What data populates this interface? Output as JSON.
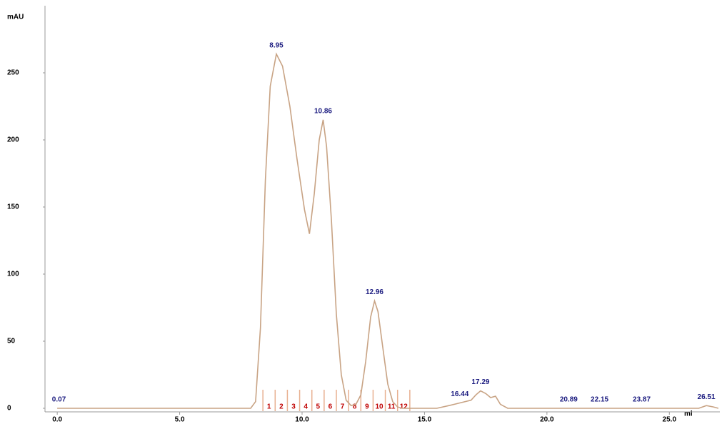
{
  "chart_data": {
    "type": "line",
    "y_label": "mAU",
    "x_label": "ml",
    "xlim": [
      -0.5,
      27.5
    ],
    "ylim": [
      0,
      300
    ],
    "xticks": [
      {
        "value": 0,
        "label": "0.0"
      },
      {
        "value": 5,
        "label": "5.0"
      },
      {
        "value": 10,
        "label": "10.0"
      },
      {
        "value": 15,
        "label": "15.0"
      },
      {
        "value": 20,
        "label": "20.0"
      },
      {
        "value": 25,
        "label": "25.0"
      }
    ],
    "yticks": [
      0,
      50,
      100,
      150,
      200,
      250
    ],
    "x": [
      0,
      7.9,
      8.1,
      8.3,
      8.5,
      8.7,
      8.95,
      9.2,
      9.5,
      9.8,
      10.1,
      10.3,
      10.5,
      10.7,
      10.86,
      11.0,
      11.2,
      11.4,
      11.6,
      11.8,
      12.0,
      12.2,
      12.4,
      12.6,
      12.8,
      12.96,
      13.1,
      13.3,
      13.5,
      13.7,
      13.9,
      14.1,
      14.5,
      15.5,
      16.0,
      16.44,
      16.9,
      17.1,
      17.29,
      17.5,
      17.7,
      17.9,
      18.1,
      18.4,
      19,
      20.89,
      22.15,
      23.87,
      26.2,
      26.51,
      26.8,
      27
    ],
    "series": [
      {
        "name": "UV",
        "color": "#c8a384",
        "values": [
          0,
          0,
          5,
          60,
          170,
          240,
          264,
          255,
          225,
          185,
          148,
          130,
          160,
          200,
          215,
          195,
          140,
          70,
          25,
          6,
          2,
          3,
          10,
          35,
          68,
          80,
          72,
          45,
          18,
          5,
          1,
          0,
          0,
          0,
          2,
          4,
          6,
          10,
          13,
          11,
          8,
          9,
          3,
          0,
          0,
          0,
          0,
          0,
          0,
          2,
          1,
          0
        ]
      }
    ],
    "peak_labels": [
      0.07,
      8.95,
      10.86,
      12.96,
      16.44,
      17.29,
      20.89,
      22.15,
      23.87,
      26.51
    ],
    "peak_label_color": "#1c1c80",
    "fractions": {
      "labels": [
        1,
        2,
        3,
        4,
        5,
        6,
        7,
        8,
        9,
        10,
        11,
        12
      ],
      "boundaries": [
        8.4,
        8.9,
        9.4,
        9.9,
        10.4,
        10.9,
        11.4,
        11.9,
        12.4,
        12.9,
        13.4,
        13.9,
        14.4
      ],
      "color": "#c00000",
      "tick_color": "#e8b090"
    }
  }
}
